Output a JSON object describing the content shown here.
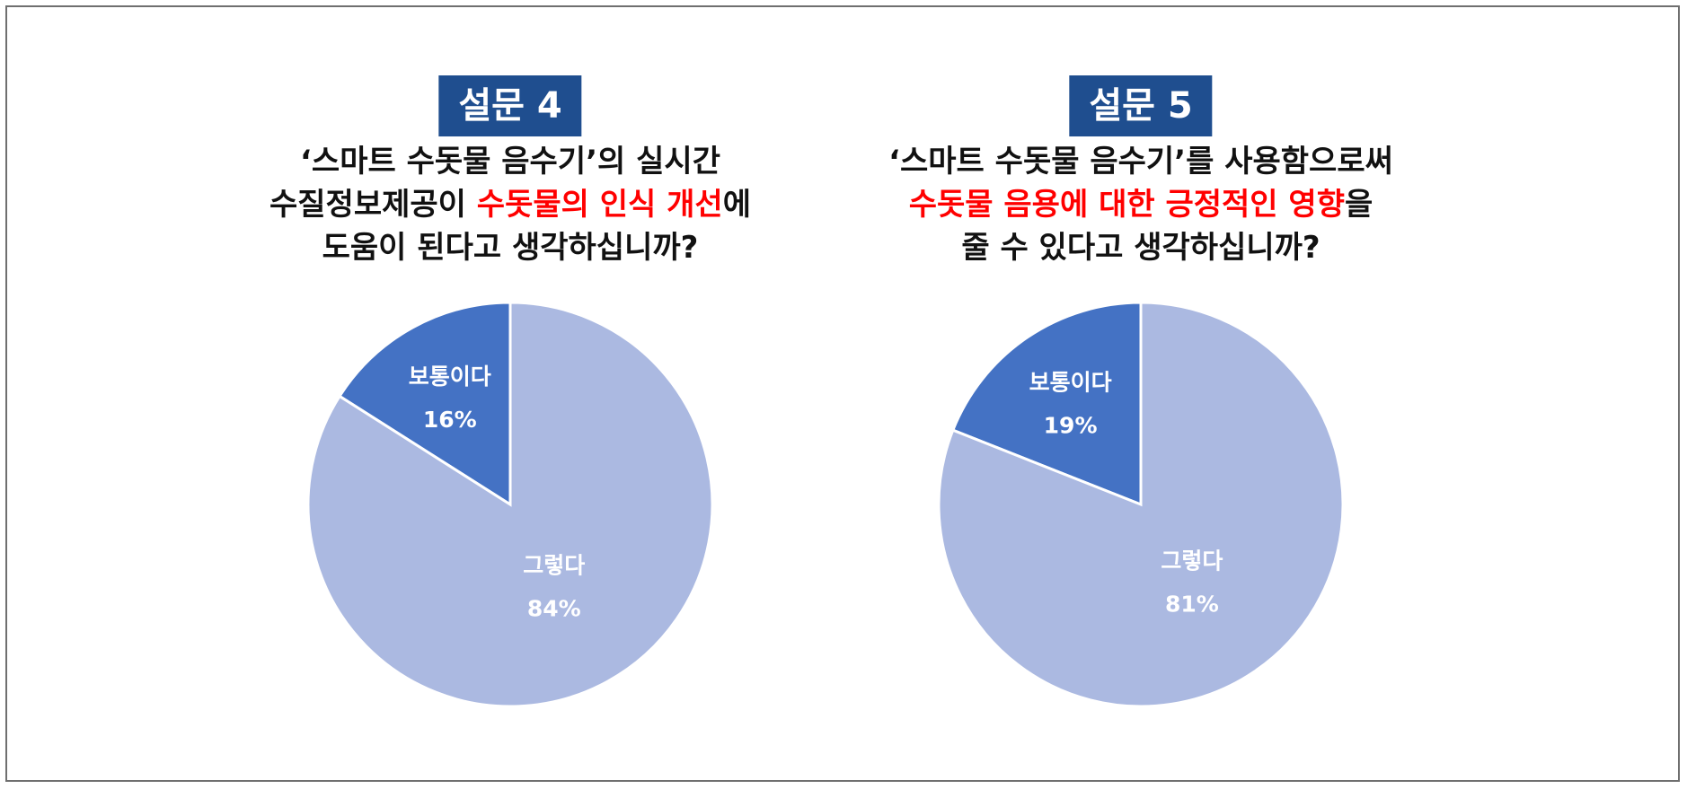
{
  "chart_data": [
    {
      "type": "pie",
      "badge": "설문 4",
      "question": [
        [
          {
            "text": "‘스마트 수돗물 음수기’의 실시간",
            "hl": false
          }
        ],
        [
          {
            "text": "수질정보제공이 ",
            "hl": false
          },
          {
            "text": "수돗물의 인식 개선",
            "hl": true
          },
          {
            "text": "에",
            "hl": false
          }
        ],
        [
          {
            "text": "도움이 된다고 생각하십니까?",
            "hl": false
          }
        ]
      ],
      "slices": [
        {
          "label": "보통이다",
          "value": 16,
          "value_label": "16%",
          "color": "#4472c4"
        },
        {
          "label": "그렇다",
          "value": 84,
          "value_label": "84%",
          "color": "#abb9e1"
        }
      ]
    },
    {
      "type": "pie",
      "badge": "설문 5",
      "question": [
        [
          {
            "text": "‘스마트 수돗물 음수기’를 사용함으로써",
            "hl": false
          }
        ],
        [
          {
            "text": "수돗물 음용에 대한 긍정적인 영향",
            "hl": true
          },
          {
            "text": "을",
            "hl": false
          }
        ],
        [
          {
            "text": "줄 수 있다고 생각하십니까?",
            "hl": false
          }
        ]
      ],
      "slices": [
        {
          "label": "보통이다",
          "value": 19,
          "value_label": "19%",
          "color": "#4472c4"
        },
        {
          "label": "그렇다",
          "value": 81,
          "value_label": "81%",
          "color": "#abb9e1"
        }
      ]
    }
  ],
  "colors": {
    "badge_bg": "#1f4e8f",
    "highlight": "#ff0000",
    "border": "#6f6f6f"
  }
}
